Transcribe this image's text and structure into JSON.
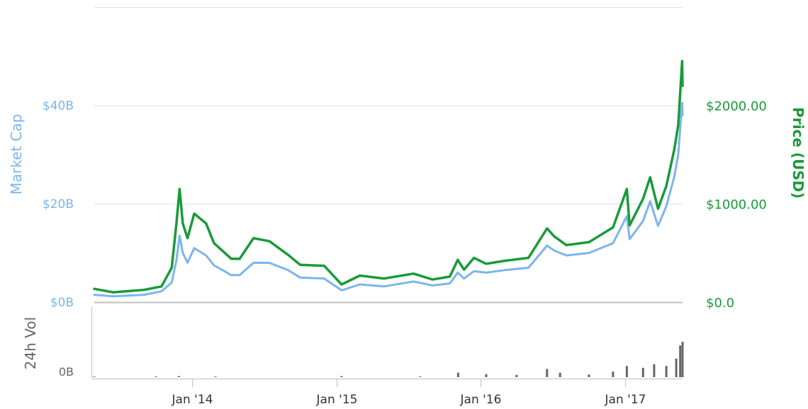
{
  "chart_data": {
    "type": "line",
    "x_range": [
      "2013-04-28",
      "2017-05-26"
    ],
    "y_left_label": "Market Cap",
    "y_right_label": "Price (USD)",
    "volume_label": "24h Vol",
    "y_left_ticks": [
      "$0B",
      "$20B",
      "$40B"
    ],
    "y_right_ticks": [
      "$0.0",
      "$1000.00",
      "$2000.00"
    ],
    "volume_ticks": [
      "0B"
    ],
    "x_ticks": [
      "Jan '14",
      "Jan '15",
      "Jan '16",
      "Jan '17"
    ],
    "ylim_left_billions": [
      0,
      60
    ],
    "ylim_right_usd": [
      0,
      3000
    ],
    "grid": true,
    "series": [
      {
        "name": "Market Cap",
        "axis": "left",
        "color": "#7cb5ec",
        "points": [
          [
            "2013-04-28",
            1.5
          ],
          [
            "2013-06-15",
            1.2
          ],
          [
            "2013-09-01",
            1.5
          ],
          [
            "2013-10-15",
            2.2
          ],
          [
            "2013-11-10",
            4.0
          ],
          [
            "2013-11-22",
            8.5
          ],
          [
            "2013-11-30",
            13.5
          ],
          [
            "2013-12-08",
            10.0
          ],
          [
            "2013-12-20",
            8.0
          ],
          [
            "2014-01-06",
            11.0
          ],
          [
            "2014-02-05",
            9.5
          ],
          [
            "2014-02-25",
            7.5
          ],
          [
            "2014-04-10",
            5.5
          ],
          [
            "2014-05-01",
            5.5
          ],
          [
            "2014-06-05",
            8.0
          ],
          [
            "2014-07-15",
            8.0
          ],
          [
            "2014-09-01",
            6.5
          ],
          [
            "2014-10-01",
            5.0
          ],
          [
            "2014-12-01",
            4.8
          ],
          [
            "2015-01-14",
            2.4
          ],
          [
            "2015-03-01",
            3.6
          ],
          [
            "2015-05-01",
            3.2
          ],
          [
            "2015-07-15",
            4.2
          ],
          [
            "2015-09-01",
            3.4
          ],
          [
            "2015-10-15",
            3.8
          ],
          [
            "2015-11-04",
            6.0
          ],
          [
            "2015-11-20",
            4.8
          ],
          [
            "2015-12-15",
            6.3
          ],
          [
            "2016-01-15",
            6.0
          ],
          [
            "2016-03-01",
            6.5
          ],
          [
            "2016-05-01",
            7.0
          ],
          [
            "2016-06-17",
            11.5
          ],
          [
            "2016-07-05",
            10.5
          ],
          [
            "2016-08-05",
            9.5
          ],
          [
            "2016-10-01",
            10.0
          ],
          [
            "2016-12-01",
            12.0
          ],
          [
            "2017-01-05",
            17.5
          ],
          [
            "2017-01-12",
            12.8
          ],
          [
            "2017-02-15",
            16.5
          ],
          [
            "2017-03-05",
            20.5
          ],
          [
            "2017-03-25",
            15.5
          ],
          [
            "2017-04-15",
            19.5
          ],
          [
            "2017-05-05",
            25.5
          ],
          [
            "2017-05-15",
            30.0
          ],
          [
            "2017-05-25",
            40.5
          ],
          [
            "2017-05-26",
            38.0
          ]
        ]
      },
      {
        "name": "Price (USD)",
        "axis": "right",
        "color": "#1a9a3a",
        "points": [
          [
            "2013-04-28",
            135
          ],
          [
            "2013-06-15",
            100
          ],
          [
            "2013-09-01",
            125
          ],
          [
            "2013-10-15",
            160
          ],
          [
            "2013-11-10",
            350
          ],
          [
            "2013-11-22",
            800
          ],
          [
            "2013-11-30",
            1150
          ],
          [
            "2013-12-08",
            800
          ],
          [
            "2013-12-20",
            650
          ],
          [
            "2014-01-06",
            900
          ],
          [
            "2014-02-05",
            800
          ],
          [
            "2014-02-25",
            600
          ],
          [
            "2014-04-10",
            440
          ],
          [
            "2014-05-01",
            440
          ],
          [
            "2014-06-05",
            650
          ],
          [
            "2014-07-15",
            620
          ],
          [
            "2014-09-01",
            480
          ],
          [
            "2014-10-01",
            380
          ],
          [
            "2014-12-01",
            370
          ],
          [
            "2015-01-14",
            180
          ],
          [
            "2015-03-01",
            270
          ],
          [
            "2015-05-01",
            240
          ],
          [
            "2015-07-15",
            290
          ],
          [
            "2015-09-01",
            230
          ],
          [
            "2015-10-15",
            260
          ],
          [
            "2015-11-04",
            430
          ],
          [
            "2015-11-20",
            330
          ],
          [
            "2015-12-15",
            450
          ],
          [
            "2016-01-15",
            390
          ],
          [
            "2016-03-01",
            420
          ],
          [
            "2016-05-01",
            450
          ],
          [
            "2016-06-17",
            750
          ],
          [
            "2016-07-05",
            670
          ],
          [
            "2016-08-05",
            580
          ],
          [
            "2016-10-01",
            610
          ],
          [
            "2016-12-01",
            760
          ],
          [
            "2017-01-05",
            1150
          ],
          [
            "2017-01-12",
            780
          ],
          [
            "2017-02-15",
            1050
          ],
          [
            "2017-03-05",
            1270
          ],
          [
            "2017-03-25",
            950
          ],
          [
            "2017-04-15",
            1180
          ],
          [
            "2017-05-05",
            1550
          ],
          [
            "2017-05-15",
            1800
          ],
          [
            "2017-05-25",
            2450
          ],
          [
            "2017-05-26",
            2200
          ]
        ]
      },
      {
        "name": "24h Vol",
        "axis": "volume",
        "color": "#666666",
        "points": [
          [
            "2013-04-28",
            0.05
          ],
          [
            "2013-10-01",
            0.05
          ],
          [
            "2013-11-28",
            0.3
          ],
          [
            "2014-03-01",
            0.1
          ],
          [
            "2015-01-14",
            0.3
          ],
          [
            "2015-08-01",
            0.2
          ],
          [
            "2015-11-05",
            1.2
          ],
          [
            "2016-01-15",
            0.8
          ],
          [
            "2016-04-01",
            0.6
          ],
          [
            "2016-06-17",
            2.2
          ],
          [
            "2016-07-20",
            1.2
          ],
          [
            "2016-10-01",
            0.7
          ],
          [
            "2016-12-01",
            1.5
          ],
          [
            "2017-01-05",
            3.0
          ],
          [
            "2017-02-15",
            2.5
          ],
          [
            "2017-03-15",
            3.5
          ],
          [
            "2017-04-15",
            3.0
          ],
          [
            "2017-05-10",
            5.0
          ],
          [
            "2017-05-20",
            8.5
          ],
          [
            "2017-05-26",
            9.5
          ]
        ]
      }
    ]
  }
}
